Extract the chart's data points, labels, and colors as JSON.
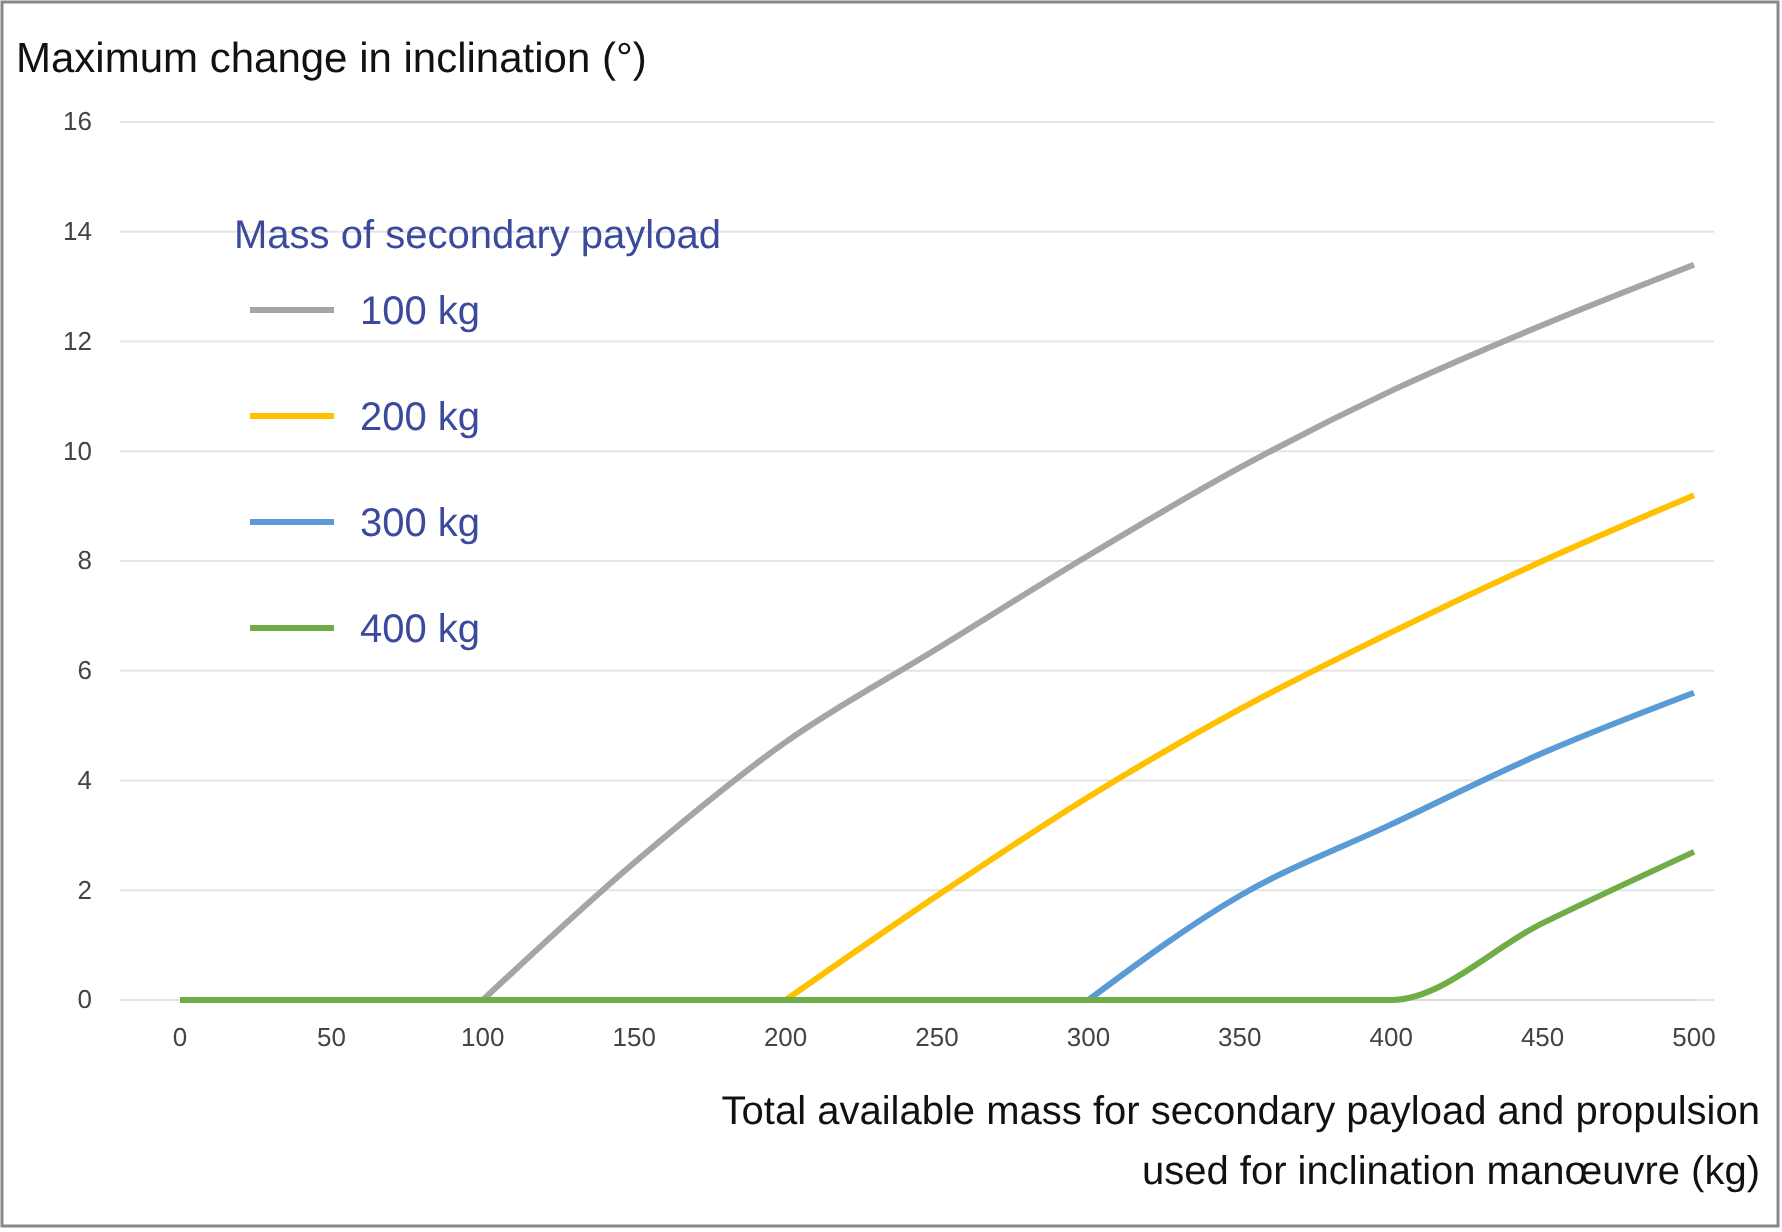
{
  "chart_data": {
    "type": "line",
    "title": "Maximum change in inclination (°)",
    "xlabel": "Total available mass for secondary payload and propulsion used for inclination manœuvre (kg)",
    "legend_title": "Mass of secondary payload",
    "xlim": [
      0,
      500
    ],
    "xticks": [
      0,
      50,
      100,
      150,
      200,
      250,
      300,
      350,
      400,
      450,
      500
    ],
    "ylim": [
      0,
      16
    ],
    "yticks": [
      0,
      2,
      4,
      6,
      8,
      10,
      12,
      14,
      16
    ],
    "grid": "y",
    "legend": "top left",
    "marker": "none",
    "line_style": "solid",
    "series": [
      {
        "name": "100 kg",
        "color": "#a5a5a5",
        "x": [
          100,
          150,
          200,
          250,
          300,
          350,
          400,
          450,
          500
        ],
        "values": [
          0,
          2.5,
          4.7,
          6.4,
          8.1,
          9.7,
          11.1,
          12.3,
          13.4
        ]
      },
      {
        "name": "200 kg",
        "color": "#ffc000",
        "x": [
          200,
          250,
          300,
          350,
          400,
          450,
          500
        ],
        "values": [
          0,
          1.9,
          3.7,
          5.3,
          6.7,
          8.0,
          9.2
        ]
      },
      {
        "name": "300 kg",
        "color": "#5b9bd5",
        "x": [
          300,
          350,
          400,
          450,
          500
        ],
        "values": [
          0,
          1.9,
          3.2,
          4.5,
          5.6
        ]
      },
      {
        "name": "400 kg",
        "color": "#70ad47",
        "x": [
          0,
          400,
          450,
          500
        ],
        "values": [
          0,
          0,
          1.4,
          2.7
        ]
      }
    ]
  }
}
